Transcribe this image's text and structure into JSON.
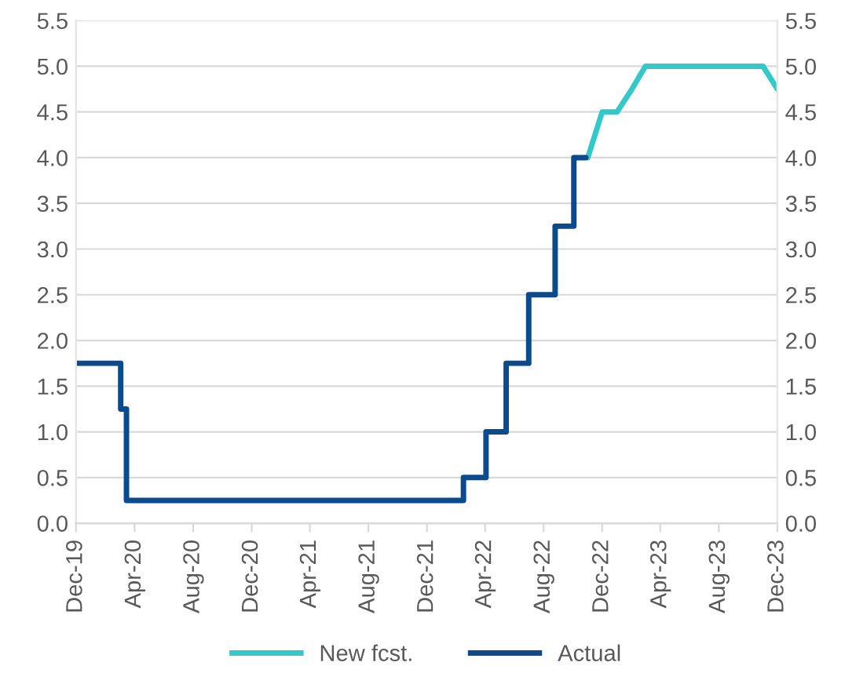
{
  "chart_data": {
    "type": "line",
    "series": [
      {
        "name": "New fcst.",
        "color": "#33c9c9",
        "x": [
          "2022-11",
          "2022-12",
          "2023-01",
          "2023-02",
          "2023-03",
          "2023-04",
          "2023-05",
          "2023-06",
          "2023-07",
          "2023-08",
          "2023-09",
          "2023-10",
          "2023-11",
          "2023-12"
        ],
        "values": [
          4.0,
          4.5,
          4.5,
          4.75,
          5.0,
          5.0,
          5.0,
          5.0,
          5.0,
          5.0,
          5.0,
          5.0,
          5.0,
          4.75
        ]
      },
      {
        "name": "Actual",
        "type": "step",
        "color": "#0b4a8b",
        "x": [
          "2019-12-01",
          "2020-03-03",
          "2020-03-15",
          "2022-02-15",
          "2022-04-03",
          "2022-05-15",
          "2022-07-01",
          "2022-08-25",
          "2022-10-03",
          "2022-10-28"
        ],
        "values": [
          1.75,
          1.25,
          0.25,
          0.5,
          1.0,
          1.75,
          2.5,
          3.25,
          4.0,
          4.0
        ]
      }
    ],
    "xlim": [
      "2019-12-01",
      "2023-12-01"
    ],
    "xticks": [
      {
        "value": "2019-12",
        "label": "Dec-19"
      },
      {
        "value": "2020-04",
        "label": "Apr-20"
      },
      {
        "value": "2020-08",
        "label": "Aug-20"
      },
      {
        "value": "2020-12",
        "label": "Dec-20"
      },
      {
        "value": "2021-04",
        "label": "Apr-21"
      },
      {
        "value": "2021-08",
        "label": "Aug-21"
      },
      {
        "value": "2021-12",
        "label": "Dec-21"
      },
      {
        "value": "2022-04",
        "label": "Apr-22"
      },
      {
        "value": "2022-08",
        "label": "Aug-22"
      },
      {
        "value": "2022-12",
        "label": "Dec-22"
      },
      {
        "value": "2023-04",
        "label": "Apr-23"
      },
      {
        "value": "2023-08",
        "label": "Aug-23"
      },
      {
        "value": "2023-12",
        "label": "Dec-23"
      }
    ],
    "ylim": [
      0,
      5.5
    ],
    "yticks": [
      {
        "value": 0,
        "label": "0.0"
      },
      {
        "value": 0.5,
        "label": "0.5"
      },
      {
        "value": 1,
        "label": "1.0"
      },
      {
        "value": 1.5,
        "label": "1.5"
      },
      {
        "value": 2,
        "label": "2.0"
      },
      {
        "value": 2.5,
        "label": "2.5"
      },
      {
        "value": 3,
        "label": "3.0"
      },
      {
        "value": 3.5,
        "label": "3.5"
      },
      {
        "value": 4,
        "label": "4.0"
      },
      {
        "value": 4.5,
        "label": "4.5"
      },
      {
        "value": 5,
        "label": "5.0"
      },
      {
        "value": 5.5,
        "label": "5.5"
      }
    ],
    "y2lim": [
      0,
      5.5
    ],
    "y2ticks": [
      {
        "value": 0,
        "label": "0.0"
      },
      {
        "value": 0.5,
        "label": "0.5"
      },
      {
        "value": 1,
        "label": "1.0"
      },
      {
        "value": 1.5,
        "label": "1.5"
      },
      {
        "value": 2,
        "label": "2.0"
      },
      {
        "value": 2.5,
        "label": "2.5"
      },
      {
        "value": 3,
        "label": "3.0"
      },
      {
        "value": 3.5,
        "label": "3.5"
      },
      {
        "value": 4,
        "label": "4.0"
      },
      {
        "value": 4.5,
        "label": "4.5"
      },
      {
        "value": 5,
        "label": "5.0"
      },
      {
        "value": 5.5,
        "label": "5.5"
      }
    ],
    "grid": "y",
    "legend": "bottom",
    "marker": "none",
    "line_style": "solid"
  }
}
